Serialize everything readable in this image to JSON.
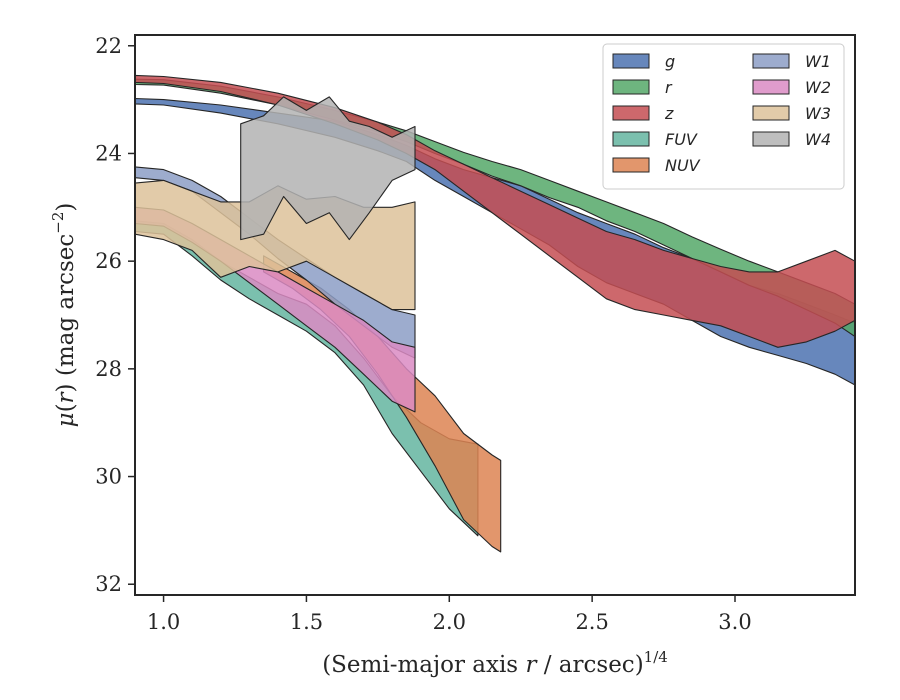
{
  "chart_data": {
    "type": "area",
    "title": "",
    "xlabel": "(Semi-major axis r / arcsec)",
    "xlabel_parts": {
      "pre": "(Semi-major axis ",
      "var": "r",
      "post": " / arcsec)",
      "sup": "1/4"
    },
    "ylabel": "μ(r) (mag arcsec−2)",
    "ylabel_parts": {
      "mu": "μ",
      "open": "(",
      "var": "r",
      "close": ")",
      "unit": " (mag arcsec",
      "sup": "−2",
      "end": ")"
    },
    "xlim": [
      0.9,
      3.42
    ],
    "ylim": [
      32.2,
      21.8
    ],
    "y_inverted": true,
    "xticks": [
      1.0,
      1.5,
      2.0,
      2.5,
      3.0
    ],
    "xtick_labels": [
      "1.0",
      "1.5",
      "2.0",
      "2.5",
      "3.0"
    ],
    "yticks": [
      22,
      24,
      26,
      28,
      30,
      32
    ],
    "ytick_labels": [
      "22",
      "24",
      "26",
      "28",
      "30",
      "32"
    ],
    "grid": false,
    "legend_position": "top-right",
    "legend_columns": 2,
    "series": [
      {
        "name": "g",
        "color": "#4c72b0",
        "x": [
          0.9,
          1.0,
          1.2,
          1.4,
          1.6,
          1.75,
          1.85,
          1.95,
          2.05,
          2.15,
          2.25,
          2.35,
          2.45,
          2.55,
          2.65,
          2.75,
          2.85,
          2.95,
          3.05,
          3.15,
          3.25,
          3.35,
          3.42
        ],
        "lo": [
          22.98,
          23.0,
          23.1,
          23.25,
          23.4,
          23.65,
          23.85,
          24.1,
          24.3,
          24.45,
          24.6,
          24.85,
          25.1,
          25.3,
          25.5,
          25.75,
          25.95,
          26.2,
          26.45,
          26.6,
          26.8,
          27.0,
          27.15
        ],
        "hi": [
          23.08,
          23.1,
          23.25,
          23.45,
          23.7,
          23.95,
          24.15,
          24.5,
          24.8,
          25.1,
          25.4,
          25.7,
          26.1,
          26.4,
          26.6,
          26.8,
          27.1,
          27.4,
          27.6,
          27.75,
          27.9,
          28.1,
          28.3
        ]
      },
      {
        "name": "r",
        "color": "#55a868",
        "x": [
          0.9,
          1.0,
          1.2,
          1.4,
          1.6,
          1.75,
          1.85,
          1.95,
          2.05,
          2.15,
          2.25,
          2.35,
          2.45,
          2.55,
          2.65,
          2.75,
          2.85,
          2.95,
          3.05,
          3.15,
          3.25,
          3.35,
          3.42
        ],
        "lo": [
          22.62,
          22.63,
          22.75,
          22.95,
          23.2,
          23.42,
          23.58,
          23.78,
          23.98,
          24.15,
          24.3,
          24.5,
          24.7,
          24.9,
          25.1,
          25.3,
          25.55,
          25.78,
          26.0,
          26.2,
          26.4,
          26.6,
          26.8
        ],
        "hi": [
          22.72,
          22.73,
          22.88,
          23.1,
          23.38,
          23.6,
          23.78,
          24.0,
          24.2,
          24.42,
          24.6,
          24.82,
          25.0,
          25.25,
          25.45,
          25.7,
          25.95,
          26.2,
          26.45,
          26.65,
          26.9,
          27.15,
          27.4
        ]
      },
      {
        "name": "z",
        "color": "#c44e52",
        "x": [
          0.9,
          1.0,
          1.2,
          1.4,
          1.6,
          1.75,
          1.85,
          1.95,
          2.05,
          2.15,
          2.25,
          2.35,
          2.45,
          2.55,
          2.65,
          2.75,
          2.85,
          2.95,
          3.05,
          3.15,
          3.25,
          3.35,
          3.42
        ],
        "lo": [
          22.55,
          22.57,
          22.68,
          22.88,
          23.15,
          23.42,
          23.65,
          23.95,
          24.2,
          24.45,
          24.7,
          24.95,
          25.2,
          25.45,
          25.6,
          25.8,
          25.95,
          26.1,
          26.2,
          26.2,
          26.0,
          25.8,
          26.0
        ],
        "hi": [
          22.68,
          22.7,
          22.85,
          23.1,
          23.45,
          23.75,
          24.0,
          24.3,
          24.7,
          25.1,
          25.5,
          25.9,
          26.3,
          26.7,
          26.9,
          27.0,
          27.1,
          27.2,
          27.4,
          27.6,
          27.5,
          27.3,
          27.1
        ]
      },
      {
        "name": "FUV",
        "color": "#64b5a0",
        "x": [
          0.9,
          1.0,
          1.1,
          1.2,
          1.3,
          1.4,
          1.5,
          1.6,
          1.7,
          1.8,
          1.9,
          2.0,
          2.1
        ],
        "lo": [
          25.25,
          25.3,
          25.6,
          26.0,
          26.3,
          26.6,
          26.8,
          27.2,
          27.8,
          28.5,
          29.0,
          29.3,
          29.4
        ],
        "hi": [
          25.45,
          25.5,
          25.9,
          26.35,
          26.7,
          27.0,
          27.3,
          27.7,
          28.3,
          29.2,
          29.9,
          30.6,
          31.1
        ]
      },
      {
        "name": "NUV",
        "color": "#dd8452",
        "x": [
          1.35,
          1.45,
          1.55,
          1.65,
          1.75,
          1.85,
          1.95,
          2.05,
          2.15,
          2.18
        ],
        "lo": [
          25.9,
          26.2,
          26.5,
          26.9,
          27.4,
          28.0,
          28.5,
          29.2,
          29.6,
          29.7
        ],
        "hi": [
          26.2,
          26.5,
          26.9,
          27.4,
          28.1,
          28.9,
          29.8,
          30.8,
          31.3,
          31.4
        ]
      },
      {
        "name": "W1",
        "color": "#8c9dc6",
        "x": [
          0.9,
          1.0,
          1.1,
          1.2,
          1.3,
          1.4,
          1.5,
          1.6,
          1.7,
          1.8,
          1.88
        ],
        "lo": [
          24.25,
          24.3,
          24.5,
          24.8,
          25.2,
          25.6,
          25.95,
          26.3,
          26.6,
          26.9,
          27.0
        ],
        "hi": [
          24.45,
          24.5,
          24.7,
          25.1,
          25.5,
          25.95,
          26.35,
          26.8,
          27.2,
          27.6,
          27.8
        ]
      },
      {
        "name": "W2",
        "color": "#da8bc3",
        "x": [
          0.9,
          1.0,
          1.1,
          1.2,
          1.3,
          1.4,
          1.5,
          1.6,
          1.7,
          1.8,
          1.88
        ],
        "lo": [
          25.0,
          25.05,
          25.3,
          25.6,
          25.9,
          26.2,
          26.5,
          26.8,
          27.1,
          27.5,
          27.6
        ],
        "hi": [
          25.3,
          25.35,
          25.65,
          26.0,
          26.4,
          26.8,
          27.2,
          27.6,
          28.1,
          28.6,
          28.8
        ]
      },
      {
        "name": "W3",
        "color": "#ddc29a",
        "x": [
          0.9,
          1.0,
          1.1,
          1.2,
          1.3,
          1.4,
          1.5,
          1.6,
          1.7,
          1.8,
          1.88
        ],
        "lo": [
          24.55,
          24.5,
          24.7,
          24.9,
          24.9,
          24.6,
          24.85,
          24.8,
          25.0,
          25.0,
          24.9
        ],
        "hi": [
          25.5,
          25.6,
          25.8,
          26.3,
          26.1,
          26.2,
          26.0,
          26.3,
          26.6,
          26.9,
          26.9
        ]
      },
      {
        "name": "W4",
        "color": "#b3b3b3",
        "x": [
          1.27,
          1.35,
          1.42,
          1.5,
          1.58,
          1.65,
          1.72,
          1.8,
          1.88
        ],
        "lo": [
          23.45,
          23.3,
          22.95,
          23.2,
          22.95,
          23.4,
          23.5,
          23.7,
          23.5
        ],
        "hi": [
          25.6,
          25.5,
          24.8,
          25.3,
          25.1,
          25.6,
          25.1,
          24.5,
          24.3
        ]
      }
    ]
  }
}
